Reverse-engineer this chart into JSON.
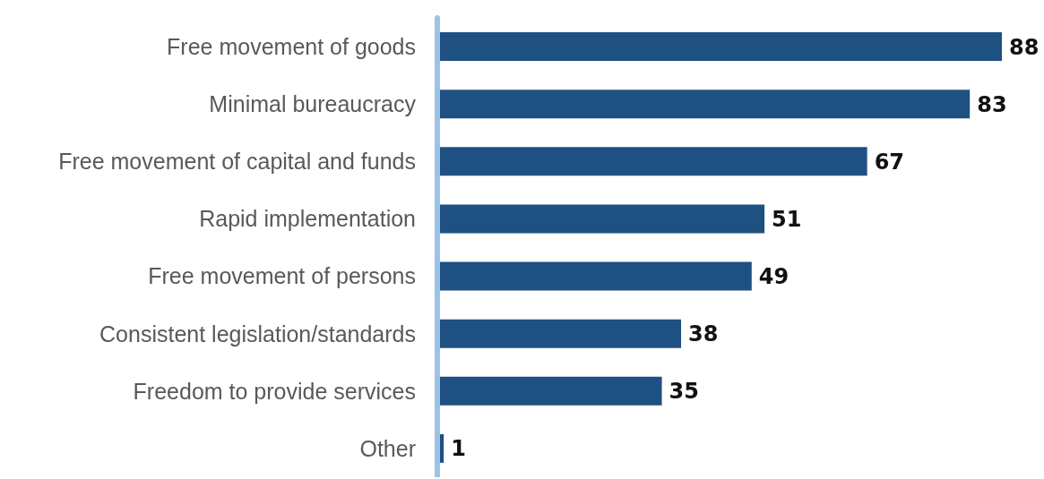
{
  "chart_data": {
    "type": "bar",
    "orientation": "horizontal",
    "categories": [
      "Free movement of goods",
      "Minimal bureaucracy",
      "Free movement of capital and funds",
      "Rapid implementation",
      "Free movement of persons",
      "Consistent legislation/standards",
      "Freedom to provide services",
      "Other"
    ],
    "values": [
      88,
      83,
      67,
      51,
      49,
      38,
      35,
      1
    ],
    "color": "#1f5082",
    "data_labels": true,
    "tick_labels": "y",
    "grid": false,
    "legend": false
  }
}
